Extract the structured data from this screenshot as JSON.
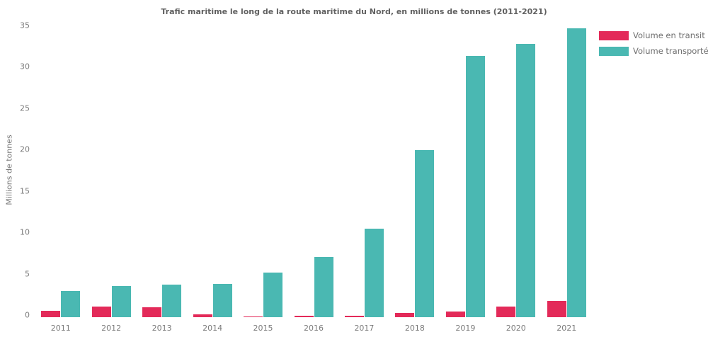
{
  "title": "Trafic maritime le long de la route maritime du Nord, en millions de tonnes (2011-2021)",
  "y_axis_label": "Millions de tonnes",
  "colors": {
    "transit": "#e32a59",
    "transporte": "#4ab8b2",
    "text_gray": "#7b7b7b",
    "title_gray": "#606060"
  },
  "legend": [
    {
      "label": "Volume en transit",
      "color": "#e32a59"
    },
    {
      "label": "Volume transporté",
      "color": "#4ab8b2"
    }
  ],
  "chart_data": {
    "type": "bar",
    "title": "Trafic maritime le long de la route maritime du Nord, en millions de tonnes (2011-2021)",
    "xlabel": "",
    "ylabel": "Millions de tonnes",
    "categories": [
      "2011",
      "2012",
      "2013",
      "2014",
      "2015",
      "2016",
      "2017",
      "2018",
      "2019",
      "2020",
      "2021"
    ],
    "series": [
      {
        "name": "Volume en transit",
        "color": "#e32a59",
        "values": [
          0.8,
          1.3,
          1.2,
          0.3,
          0.1,
          0.2,
          0.2,
          0.5,
          0.7,
          1.3,
          2.0
        ]
      },
      {
        "name": "Volume transporté",
        "color": "#4ab8b2",
        "values": [
          3.2,
          3.8,
          3.9,
          4.0,
          5.4,
          7.3,
          10.7,
          20.2,
          31.5,
          33.0,
          34.9
        ]
      }
    ],
    "ylim": [
      0,
      35
    ],
    "yticks": [
      0,
      5,
      10,
      15,
      20,
      25,
      30,
      35
    ],
    "grid": false,
    "legend_position": "top-right"
  }
}
